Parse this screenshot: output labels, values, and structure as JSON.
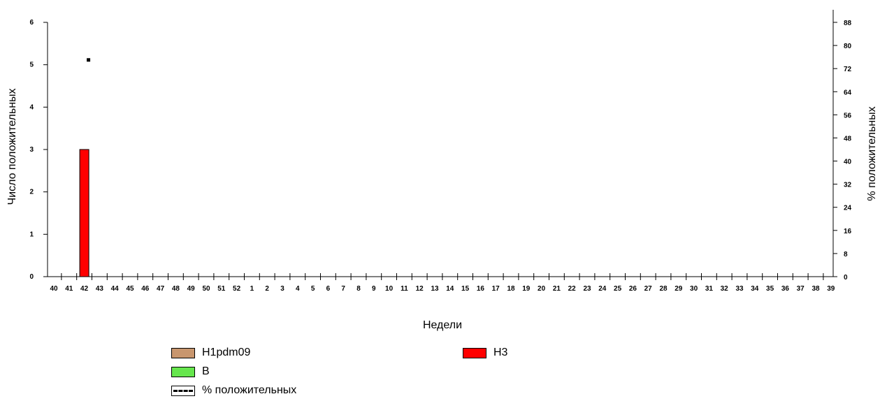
{
  "chart_data": {
    "type": "bar",
    "categories": [
      "40",
      "41",
      "42",
      "43",
      "44",
      "45",
      "46",
      "47",
      "48",
      "49",
      "50",
      "51",
      "52",
      "1",
      "2",
      "3",
      "4",
      "5",
      "6",
      "7",
      "8",
      "9",
      "10",
      "11",
      "12",
      "13",
      "14",
      "15",
      "16",
      "17",
      "18",
      "19",
      "20",
      "21",
      "22",
      "23",
      "24",
      "25",
      "26",
      "27",
      "28",
      "29",
      "30",
      "31",
      "32",
      "33",
      "34",
      "35",
      "36",
      "37",
      "38",
      "39"
    ],
    "series": [
      {
        "name": "H1pdm09",
        "color": "#c8966e",
        "values": [
          0,
          0,
          0,
          0,
          0,
          0,
          0,
          0,
          0,
          0,
          0,
          0,
          0,
          0,
          0,
          0,
          0,
          0,
          0,
          0,
          0,
          0,
          0,
          0,
          0,
          0,
          0,
          0,
          0,
          0,
          0,
          0,
          0,
          0,
          0,
          0,
          0,
          0,
          0,
          0,
          0,
          0,
          0,
          0,
          0,
          0,
          0,
          0,
          0,
          0,
          0,
          0
        ]
      },
      {
        "name": "H3",
        "color": "#ff0000",
        "values": [
          0,
          0,
          3,
          0,
          0,
          0,
          0,
          0,
          0,
          0,
          0,
          0,
          0,
          0,
          0,
          0,
          0,
          0,
          0,
          0,
          0,
          0,
          0,
          0,
          0,
          0,
          0,
          0,
          0,
          0,
          0,
          0,
          0,
          0,
          0,
          0,
          0,
          0,
          0,
          0,
          0,
          0,
          0,
          0,
          0,
          0,
          0,
          0,
          0,
          0,
          0,
          0
        ]
      },
      {
        "name": "B",
        "color": "#66e64d",
        "values": [
          0,
          0,
          0,
          0,
          0,
          0,
          0,
          0,
          0,
          0,
          0,
          0,
          0,
          0,
          0,
          0,
          0,
          0,
          0,
          0,
          0,
          0,
          0,
          0,
          0,
          0,
          0,
          0,
          0,
          0,
          0,
          0,
          0,
          0,
          0,
          0,
          0,
          0,
          0,
          0,
          0,
          0,
          0,
          0,
          0,
          0,
          0,
          0,
          0,
          0,
          0,
          0
        ]
      }
    ],
    "line_series": {
      "name": "% положительных",
      "axis": "right",
      "points": [
        {
          "x": "42",
          "y": 75
        }
      ]
    },
    "xlabel": "Недели",
    "ylabel": "Число положительных",
    "y2label": "% положительных",
    "ylim": [
      0,
      6
    ],
    "y_ticks": [
      0,
      1,
      2,
      3,
      4,
      5,
      6
    ],
    "y2lim": [
      0,
      88
    ],
    "y2_ticks": [
      0,
      8,
      16,
      24,
      32,
      40,
      48,
      56,
      64,
      72,
      80,
      88
    ],
    "grid": false,
    "legend_position": "bottom"
  }
}
